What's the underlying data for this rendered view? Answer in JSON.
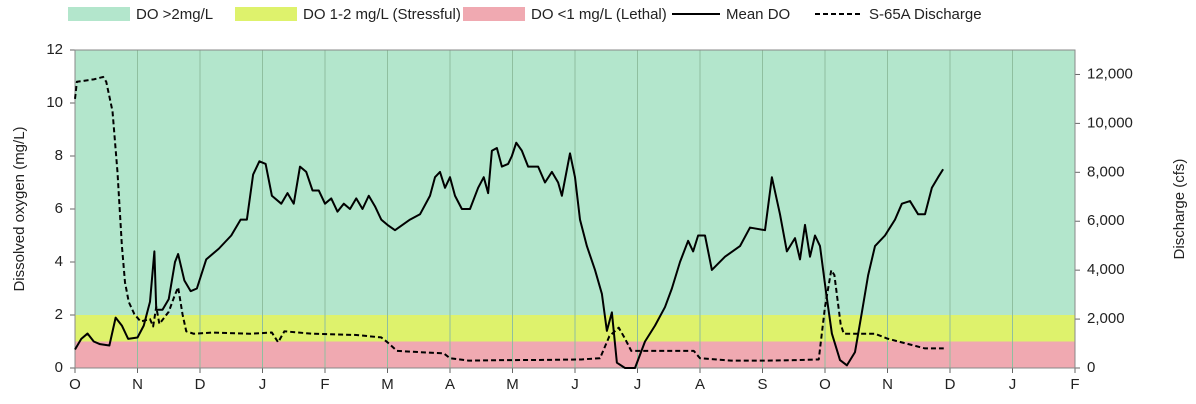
{
  "chart_data": {
    "type": "line",
    "ylabel": "Dissolved oxygen (mg/L)",
    "y2label": "Discharge (cfs)",
    "xlim": [
      0,
      16
    ],
    "xticks": [
      {
        "value": 0,
        "label": "O"
      },
      {
        "value": 1,
        "label": "N"
      },
      {
        "value": 2,
        "label": "D"
      },
      {
        "value": 3,
        "label": "J"
      },
      {
        "value": 4,
        "label": "F"
      },
      {
        "value": 5,
        "label": "M"
      },
      {
        "value": 6,
        "label": "A"
      },
      {
        "value": 7,
        "label": "M"
      },
      {
        "value": 8,
        "label": "J"
      },
      {
        "value": 9,
        "label": "J"
      },
      {
        "value": 10,
        "label": "A"
      },
      {
        "value": 11,
        "label": "S"
      },
      {
        "value": 12,
        "label": "O"
      },
      {
        "value": 13,
        "label": "N"
      },
      {
        "value": 14,
        "label": "D"
      },
      {
        "value": 15,
        "label": "J"
      },
      {
        "value": 16,
        "label": "F"
      }
    ],
    "ylim": [
      0,
      12
    ],
    "yticks": [
      0,
      2,
      4,
      6,
      8,
      10,
      12
    ],
    "y2lim": [
      0,
      13000
    ],
    "y2ticks": [
      0,
      {
        "value": 2000,
        "label": "2,000"
      },
      {
        "value": 4000,
        "label": "4,000"
      },
      {
        "value": 6000,
        "label": "6,000"
      },
      {
        "value": 8000,
        "label": "8,000"
      },
      {
        "value": 10000,
        "label": "10,000"
      },
      {
        "value": 12000,
        "label": "12,000"
      }
    ],
    "grid": true,
    "legend": "top",
    "bands": [
      {
        "name": "DO >2mg/L",
        "color": "#b3e6cc",
        "range": [
          2,
          12
        ]
      },
      {
        "name": "DO 1-2 mg/L (Stressful)",
        "color": "#def26c",
        "range": [
          1,
          2
        ]
      },
      {
        "name": "DO <1 mg/L (Lethal)",
        "color": "#f0a9b1",
        "range": [
          0,
          1
        ]
      }
    ],
    "series": [
      {
        "name": "Mean DO",
        "color": "#000000",
        "line_style": "solid",
        "x": [
          0,
          0.1,
          0.2,
          0.3,
          0.4,
          0.55,
          0.65,
          0.75,
          0.85,
          1.0,
          1.1,
          1.2,
          1.27,
          1.3,
          1.4,
          1.5,
          1.6,
          1.65,
          1.75,
          1.85,
          1.95,
          2.1,
          2.3,
          2.5,
          2.65,
          2.75,
          2.85,
          2.95,
          3.05,
          3.15,
          3.3,
          3.4,
          3.5,
          3.6,
          3.7,
          3.8,
          3.9,
          4.0,
          4.1,
          4.2,
          4.3,
          4.4,
          4.5,
          4.6,
          4.7,
          4.8,
          4.9,
          5.0,
          5.12,
          5.36,
          5.52,
          5.68,
          5.76,
          5.84,
          5.92,
          6.0,
          6.08,
          6.19,
          6.32,
          6.45,
          6.54,
          6.61,
          6.67,
          6.75,
          6.83,
          6.93,
          6.99,
          7.06,
          7.15,
          7.25,
          7.41,
          7.52,
          7.63,
          7.73,
          7.79,
          7.92,
          8.0,
          8.08,
          8.19,
          8.32,
          8.43,
          8.51,
          8.59,
          8.67,
          8.8,
          8.96,
          9.12,
          9.28,
          9.44,
          9.55,
          9.68,
          9.81,
          9.89,
          9.97,
          10.08,
          10.19,
          10.4,
          10.64,
          10.8,
          11.04,
          11.15,
          11.28,
          11.39,
          11.52,
          11.6,
          11.68,
          11.76,
          11.84,
          11.92,
          12.02,
          12.11,
          12.24,
          12.35,
          12.48,
          12.59,
          12.69,
          12.8,
          12.96,
          13.12,
          13.23,
          13.36,
          13.49,
          13.6,
          13.71,
          13.81,
          13.89
        ],
        "values": [
          0.7,
          1.1,
          1.3,
          1.0,
          0.9,
          0.85,
          1.9,
          1.6,
          1.1,
          1.15,
          1.6,
          2.5,
          4.4,
          2.2,
          2.2,
          2.6,
          4.0,
          4.3,
          3.3,
          2.9,
          3.0,
          4.1,
          4.5,
          5.0,
          5.6,
          5.6,
          7.3,
          7.8,
          7.7,
          6.5,
          6.2,
          6.6,
          6.2,
          7.6,
          7.4,
          6.7,
          6.7,
          6.2,
          6.4,
          5.9,
          6.2,
          6.0,
          6.4,
          6.0,
          6.5,
          6.1,
          5.6,
          5.4,
          5.2,
          5.6,
          5.8,
          6.5,
          7.2,
          7.4,
          6.8,
          7.2,
          6.5,
          6.0,
          6.0,
          6.8,
          7.2,
          6.6,
          8.2,
          8.3,
          7.6,
          7.7,
          8.0,
          8.5,
          8.2,
          7.6,
          7.6,
          7.0,
          7.4,
          7.0,
          6.5,
          8.1,
          7.2,
          5.6,
          4.6,
          3.7,
          2.8,
          1.4,
          2.1,
          0.2,
          0.0,
          0.0,
          1.0,
          1.6,
          2.3,
          3.0,
          4.0,
          4.8,
          4.4,
          5.0,
          5.0,
          3.7,
          4.2,
          4.6,
          5.3,
          5.2,
          7.2,
          5.8,
          4.4,
          4.9,
          4.1,
          5.4,
          4.2,
          5.0,
          4.6,
          2.8,
          1.3,
          0.3,
          0.1,
          0.6,
          2.1,
          3.5,
          4.6,
          5.0,
          5.6,
          6.2,
          6.3,
          5.8,
          5.8,
          6.8,
          7.2,
          7.5
        ]
      },
      {
        "name": "S-65A Discharge",
        "color": "#000000",
        "line_style": "dashed",
        "axis": "y2",
        "x": [
          0,
          0.03,
          0.3,
          0.45,
          0.5,
          0.6,
          0.68,
          0.75,
          0.8,
          0.86,
          0.95,
          1.05,
          1.2,
          1.25,
          1.3,
          1.35,
          1.5,
          1.6,
          1.65,
          1.72,
          1.78,
          1.9,
          2.2,
          2.8,
          3.15,
          3.25,
          3.35,
          3.8,
          4.5,
          4.9,
          5.0,
          5.15,
          5.5,
          5.9,
          6.0,
          6.3,
          6.8,
          7.5,
          8.1,
          8.4,
          8.55,
          8.7,
          8.8,
          8.9,
          9.5,
          9.9,
          10.0,
          10.5,
          11.0,
          11.5,
          11.9,
          12.0,
          12.1,
          12.15,
          12.25,
          12.3,
          12.8,
          13.0,
          13.3,
          13.6,
          13.9
        ],
        "values": [
          11000,
          11700,
          11800,
          11900,
          11700,
          10500,
          8000,
          5000,
          3500,
          2700,
          2200,
          1900,
          2000,
          1700,
          2500,
          1800,
          2300,
          3000,
          3300,
          2200,
          1500,
          1400,
          1450,
          1400,
          1450,
          1050,
          1500,
          1400,
          1350,
          1250,
          1050,
          700,
          650,
          600,
          400,
          300,
          320,
          330,
          350,
          400,
          1300,
          1650,
          1200,
          700,
          700,
          700,
          400,
          300,
          300,
          320,
          350,
          2500,
          4000,
          3800,
          1800,
          1400,
          1400,
          1200,
          1000,
          800,
          800
        ]
      }
    ]
  }
}
